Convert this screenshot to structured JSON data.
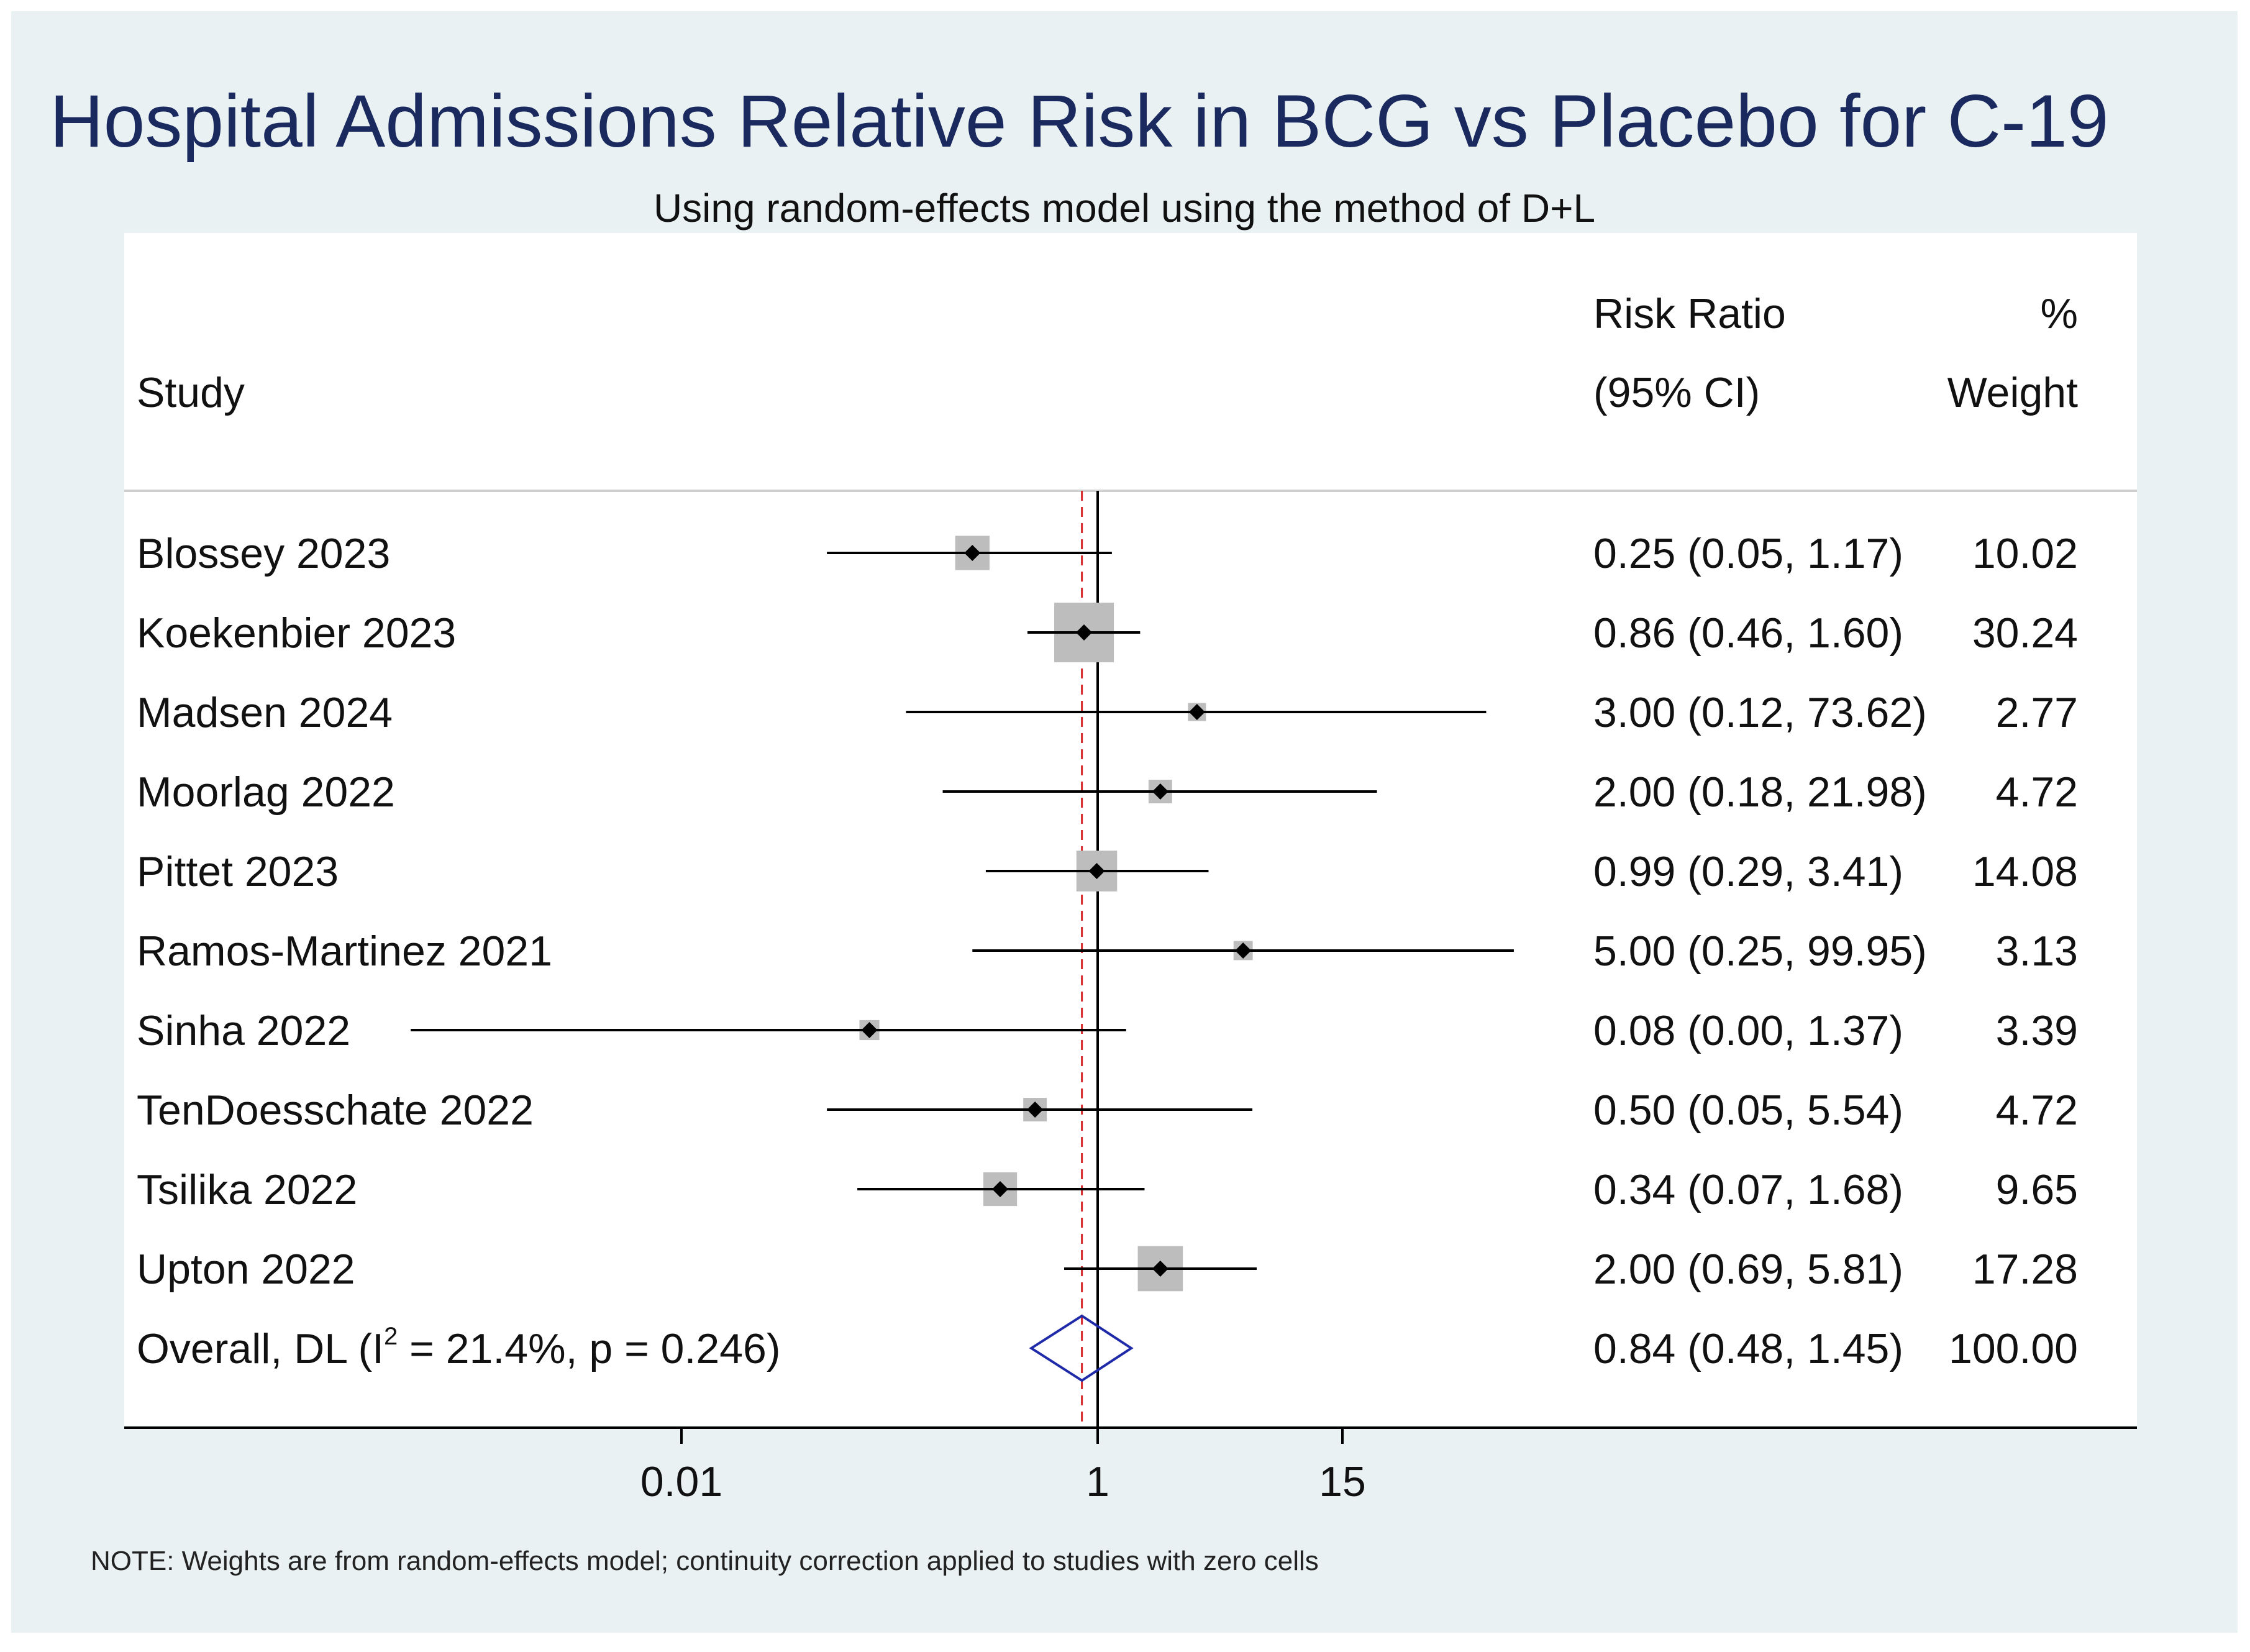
{
  "chart_data": {
    "type": "forest",
    "title": "Hospital Admissions Relative Risk in BCG vs Placebo for C-19",
    "subtitle": "Using random-effects model using the method of D+L",
    "headers": {
      "study": "Study",
      "rr_line1": "Risk Ratio",
      "rr_line2": "(95% CI)",
      "weight_line1": "%",
      "weight_line2": "Weight"
    },
    "studies": [
      {
        "label": "Blossey 2023",
        "rr": 0.25,
        "lo": 0.05,
        "hi": 1.17,
        "ci_text": "0.25 (0.05, 1.17)",
        "weight": 10.02,
        "weight_text": "10.02"
      },
      {
        "label": "Koekenbier 2023",
        "rr": 0.86,
        "lo": 0.46,
        "hi": 1.6,
        "ci_text": "0.86 (0.46, 1.60)",
        "weight": 30.24,
        "weight_text": "30.24"
      },
      {
        "label": "Madsen 2024",
        "rr": 3.0,
        "lo": 0.12,
        "hi": 73.62,
        "ci_text": "3.00 (0.12, 73.62)",
        "weight": 2.77,
        "weight_text": "2.77"
      },
      {
        "label": "Moorlag 2022",
        "rr": 2.0,
        "lo": 0.18,
        "hi": 21.98,
        "ci_text": "2.00 (0.18, 21.98)",
        "weight": 4.72,
        "weight_text": "4.72"
      },
      {
        "label": "Pittet 2023",
        "rr": 0.99,
        "lo": 0.29,
        "hi": 3.41,
        "ci_text": "0.99 (0.29, 3.41)",
        "weight": 14.08,
        "weight_text": "14.08"
      },
      {
        "label": "Ramos-Martinez 2021",
        "rr": 5.0,
        "lo": 0.25,
        "hi": 99.95,
        "ci_text": "5.00 (0.25, 99.95)",
        "weight": 3.13,
        "weight_text": "3.13"
      },
      {
        "label": "Sinha 2022",
        "rr": 0.08,
        "lo": 0.0,
        "hi": 1.37,
        "ci_text": "0.08 (0.00, 1.37)",
        "weight": 3.39,
        "weight_text": "3.39"
      },
      {
        "label": "TenDoesschate 2022",
        "rr": 0.5,
        "lo": 0.05,
        "hi": 5.54,
        "ci_text": "0.50 (0.05, 5.54)",
        "weight": 4.72,
        "weight_text": "4.72"
      },
      {
        "label": "Tsilika 2022",
        "rr": 0.34,
        "lo": 0.07,
        "hi": 1.68,
        "ci_text": "0.34 (0.07, 1.68)",
        "weight": 9.65,
        "weight_text": "9.65"
      },
      {
        "label": "Upton 2022",
        "rr": 2.0,
        "lo": 0.69,
        "hi": 5.81,
        "ci_text": "2.00 (0.69, 5.81)",
        "weight": 17.28,
        "weight_text": "17.28"
      }
    ],
    "overall": {
      "label_pre": "Overall, DL (I",
      "label_sup": "2",
      "label_post": " = 21.4%, p = 0.246)",
      "rr": 0.84,
      "lo": 0.48,
      "hi": 1.45,
      "ci_text": "0.84 (0.48, 1.45)",
      "weight": 100.0,
      "weight_text": "100.00"
    },
    "x_axis": {
      "scale": "log",
      "ticks": [
        {
          "value": 0.01,
          "label": "0.01"
        },
        {
          "value": 1,
          "label": "1"
        },
        {
          "value": 15,
          "label": "15"
        }
      ]
    },
    "null_line": 1,
    "note": "NOTE: Weights are from random-effects model; continuity correction applied to studies with zero cells"
  },
  "colors": {
    "background": "#e9f1f3",
    "panel": "#ffffff",
    "title": "#1a2a5e",
    "weight_box": "#bdbdbd",
    "overall_diamond": "#1f2aa8",
    "overall_line": "#d62728"
  }
}
